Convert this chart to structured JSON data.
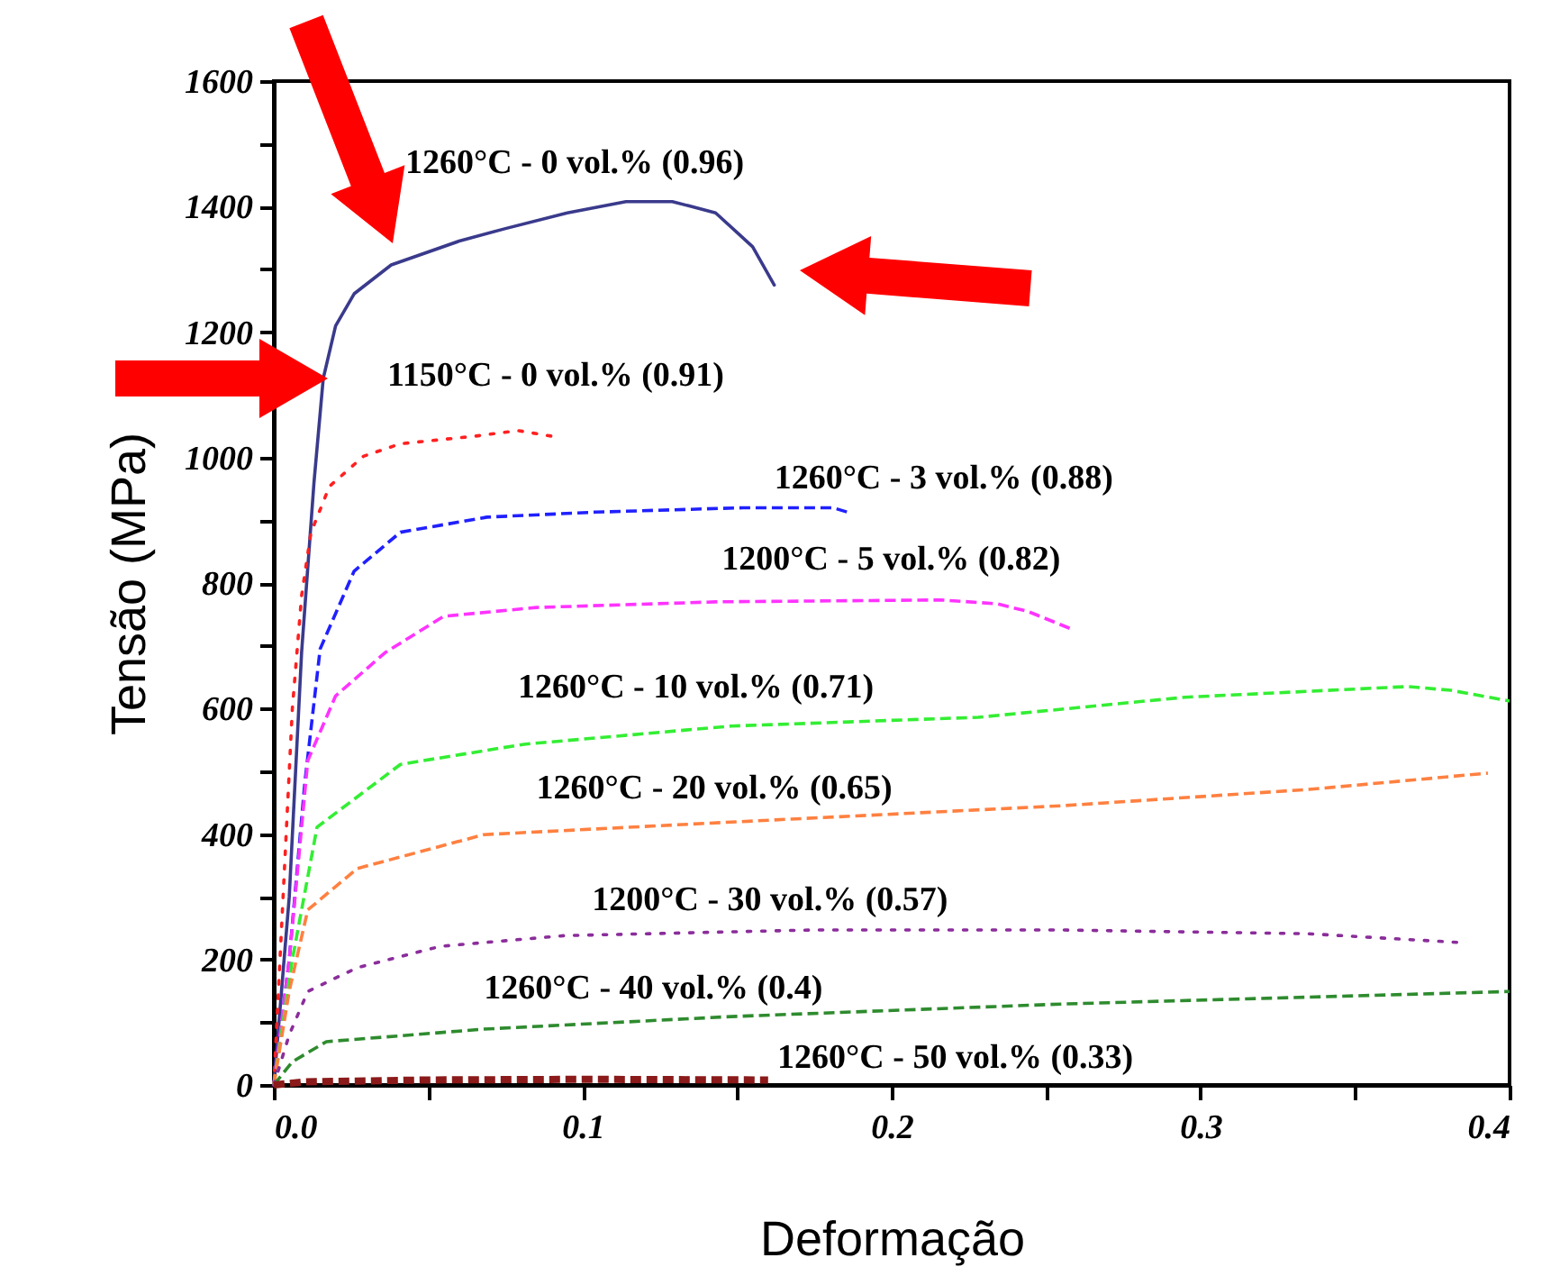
{
  "chart_data": {
    "type": "line",
    "xlabel": "Deformação",
    "ylabel": "Tensão (MPa)",
    "xlim": [
      0,
      0.4
    ],
    "ylim": [
      0,
      1600
    ],
    "xticks": [
      {
        "value": 0,
        "label": "0.0"
      },
      {
        "value": 0.05,
        "label": null
      },
      0.1,
      {
        "value": 0.15,
        "label": null
      },
      0.2,
      {
        "value": 0.25,
        "label": null
      },
      0.3,
      {
        "value": 0.35,
        "label": null
      },
      0.4
    ],
    "yticks": [
      0,
      {
        "value": 100,
        "label": null
      },
      200,
      {
        "value": 300,
        "label": null
      },
      400,
      {
        "value": 500,
        "label": null
      },
      600,
      {
        "value": 700,
        "label": null
      },
      800,
      {
        "value": 900,
        "label": null
      },
      1000,
      {
        "value": 1100,
        "label": null
      },
      1200,
      {
        "value": 1300,
        "label": null
      },
      1400,
      {
        "value": 1500,
        "label": null
      },
      1600
    ],
    "grid": false,
    "legend": false,
    "marker": "none",
    "series": [
      {
        "name": "1260°C - 0 vol.% (0.96)",
        "color": "#3a3a8c",
        "line_style": "solid",
        "x": [
          0,
          0.005,
          0.009,
          0.013,
          0.016,
          0.02,
          0.026,
          0.038,
          0.06,
          0.075,
          0.095,
          0.114,
          0.129,
          0.143,
          0.155,
          0.162
        ],
        "values": [
          0,
          300,
          690,
          960,
          1126,
          1210,
          1261,
          1307,
          1345,
          1365,
          1390,
          1408,
          1408,
          1390,
          1336,
          1275
        ]
      },
      {
        "name": "1150°C - 0 vol.% (0.91)",
        "color": "#ff2020",
        "line_style": "dotted",
        "x": [
          0,
          0.003,
          0.006,
          0.009,
          0.012,
          0.018,
          0.029,
          0.041,
          0.065,
          0.079,
          0.09
        ],
        "values": [
          0,
          300,
          600,
          780,
          880,
          954,
          1002,
          1022,
          1034,
          1043,
          1034
        ]
      },
      {
        "name": "1260°C - 3 vol.% (0.88)",
        "color": "#2020ff",
        "line_style": "dashed",
        "x": [
          0,
          0.005,
          0.01,
          0.015,
          0.026,
          0.041,
          0.069,
          0.104,
          0.152,
          0.181,
          0.187
        ],
        "values": [
          0,
          200,
          480,
          695,
          819,
          881,
          905,
          913,
          920,
          920,
          911
        ]
      },
      {
        "name": "1200°C - 5 vol.% (0.82)",
        "color": "#ff33ff",
        "line_style": "dashed",
        "x": [
          0,
          0.005,
          0.011,
          0.02,
          0.036,
          0.055,
          0.085,
          0.143,
          0.216,
          0.234,
          0.244,
          0.258
        ],
        "values": [
          0,
          200,
          517,
          620,
          689,
          747,
          761,
          770,
          773,
          767,
          755,
          727
        ]
      },
      {
        "name": "1260°C - 10 vol.% (0.71)",
        "color": "#33ee33",
        "line_style": "dashed",
        "x": [
          0,
          0.006,
          0.014,
          0.041,
          0.081,
          0.148,
          0.228,
          0.295,
          0.367,
          0.381,
          0.4
        ],
        "values": [
          0,
          200,
          411,
          511,
          543,
          572,
          586,
          618,
          635,
          629,
          612
        ]
      },
      {
        "name": "1260°C - 20 vol.% (0.65)",
        "color": "#ff8040",
        "line_style": "dashed",
        "x": [
          0,
          0.005,
          0.011,
          0.027,
          0.068,
          0.148,
          0.255,
          0.335,
          0.393
        ],
        "values": [
          0,
          150,
          279,
          345,
          399,
          419,
          445,
          471,
          497
        ]
      },
      {
        "name": "1200°C - 30 vol.% (0.57)",
        "color": "#8b2d9b",
        "line_style": "dotted",
        "x": [
          0,
          0.005,
          0.011,
          0.027,
          0.054,
          0.094,
          0.174,
          0.255,
          0.335,
          0.384
        ],
        "values": [
          0,
          80,
          149,
          187,
          221,
          238,
          247,
          247,
          241,
          227
        ]
      },
      {
        "name": "1260°C - 40 vol.% (0.4)",
        "color": "#2e8b2e",
        "line_style": "dashed",
        "x": [
          0,
          0.006,
          0.017,
          0.068,
          0.148,
          0.255,
          0.4
        ],
        "values": [
          0,
          37,
          69,
          89,
          109,
          129,
          149
        ]
      },
      {
        "name": "1260°C - 50 vol.% (0.33)",
        "color": "#8b1a1a",
        "line_style": "dashed",
        "x": [
          0,
          0.01,
          0.05,
          0.1,
          0.16
        ],
        "values": [
          0,
          5,
          8,
          9,
          8
        ]
      }
    ]
  }
}
